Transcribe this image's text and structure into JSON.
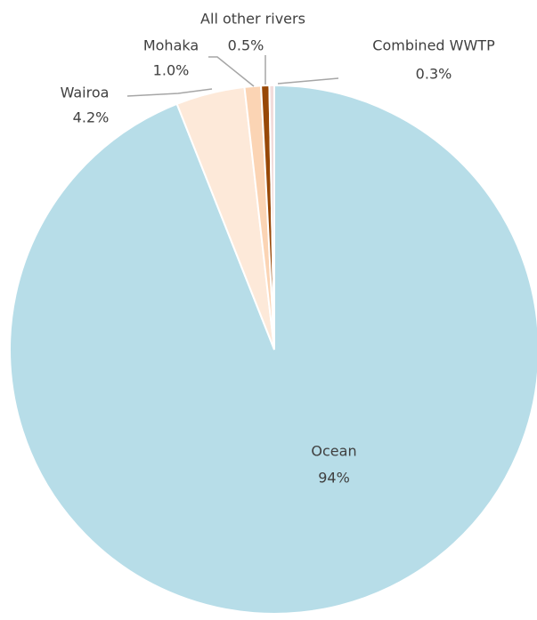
{
  "chart_data": {
    "type": "pie",
    "categories": [
      "Ocean",
      "Wairoa",
      "Mohaka",
      "All other rivers",
      "Combined WWTP"
    ],
    "values": [
      94,
      4.2,
      1.0,
      0.5,
      0.3
    ],
    "value_labels": [
      "94%",
      "4.2%",
      "1.0%",
      "0.5%",
      "0.3%"
    ],
    "colors": [
      "#b7dde8",
      "#fde9d9",
      "#fbd4b4",
      "#984807",
      "#f2dcdb"
    ]
  }
}
